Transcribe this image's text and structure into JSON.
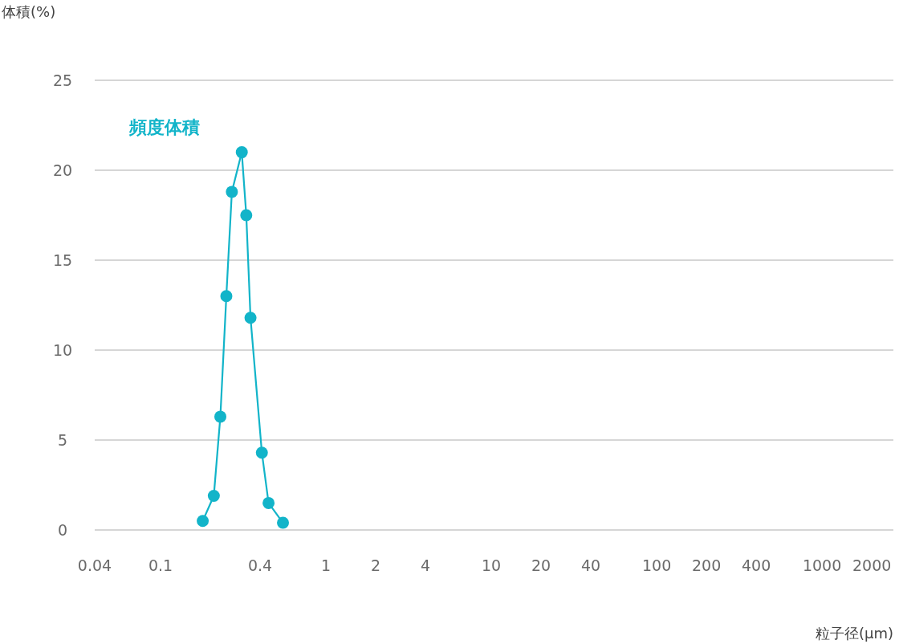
{
  "chart_data": {
    "type": "line",
    "xlabel": "粒子径(μm)",
    "ylabel": "体積(%)",
    "log": "x",
    "xlim": [
      0.04,
      2700
    ],
    "xticks": [
      0.04,
      0.1,
      0.4,
      1,
      2,
      4,
      10,
      20,
      40,
      100,
      200,
      400,
      1000,
      2000
    ],
    "ylim": [
      0,
      25
    ],
    "yticks": [
      0,
      5,
      10,
      15,
      20,
      25
    ],
    "grid": "y",
    "marker": "circle",
    "line_style": "solid",
    "legend": false,
    "series": [
      {
        "name": "頻度体積",
        "color": "#12b4c9",
        "x": [
          0.18,
          0.21,
          0.23,
          0.25,
          0.27,
          0.31,
          0.33,
          0.35,
          0.41,
          0.45,
          0.55
        ],
        "values": [
          0.5,
          1.9,
          6.3,
          13.0,
          18.8,
          21.0,
          17.5,
          11.8,
          4.3,
          1.5,
          0.4
        ]
      }
    ]
  }
}
